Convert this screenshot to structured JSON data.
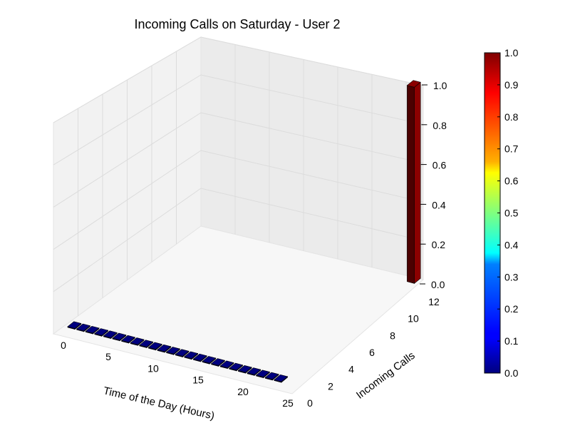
{
  "chart_data": {
    "type": "bar3d",
    "title": "Incoming Calls on Saturday - User 2",
    "xlabel": "Time of the Day (Hours)",
    "ylabel": "Incoming Calls",
    "zlabel": "",
    "xlim": [
      0,
      25
    ],
    "ylim": [
      0,
      12
    ],
    "zlim": [
      0,
      1.0
    ],
    "x_ticks": [
      "0",
      "5",
      "10",
      "15",
      "20",
      "25"
    ],
    "y_ticks": [
      "0",
      "2",
      "4",
      "6",
      "8",
      "10",
      "12"
    ],
    "z_ticks": [
      "0.0",
      "0.2",
      "0.4",
      "0.6",
      "0.8",
      "1.0"
    ],
    "bars": [
      {
        "x": 0,
        "y": 0,
        "z": 0
      },
      {
        "x": 1,
        "y": 0,
        "z": 0
      },
      {
        "x": 2,
        "y": 0,
        "z": 0
      },
      {
        "x": 3,
        "y": 0,
        "z": 0
      },
      {
        "x": 4,
        "y": 0,
        "z": 0
      },
      {
        "x": 5,
        "y": 0,
        "z": 0
      },
      {
        "x": 6,
        "y": 0,
        "z": 0
      },
      {
        "x": 7,
        "y": 0,
        "z": 0
      },
      {
        "x": 8,
        "y": 0,
        "z": 0
      },
      {
        "x": 9,
        "y": 0,
        "z": 0
      },
      {
        "x": 10,
        "y": 0,
        "z": 0
      },
      {
        "x": 11,
        "y": 0,
        "z": 0
      },
      {
        "x": 12,
        "y": 0,
        "z": 0
      },
      {
        "x": 13,
        "y": 0,
        "z": 0
      },
      {
        "x": 14,
        "y": 0,
        "z": 0
      },
      {
        "x": 15,
        "y": 0,
        "z": 0
      },
      {
        "x": 16,
        "y": 0,
        "z": 0
      },
      {
        "x": 17,
        "y": 0,
        "z": 0
      },
      {
        "x": 18,
        "y": 0,
        "z": 0
      },
      {
        "x": 19,
        "y": 0,
        "z": 0
      },
      {
        "x": 20,
        "y": 0,
        "z": 0
      },
      {
        "x": 21,
        "y": 0,
        "z": 0
      },
      {
        "x": 22,
        "y": 0,
        "z": 0
      },
      {
        "x": 23,
        "y": 0,
        "z": 0
      },
      {
        "x": 24,
        "y": 12,
        "z": 1.0
      }
    ],
    "colormap": "jet",
    "colorbar": {
      "range": [
        0,
        1.0
      ],
      "ticks": [
        "0.0",
        "0.1",
        "0.2",
        "0.3",
        "0.4",
        "0.5",
        "0.6",
        "0.7",
        "0.8",
        "0.9",
        "1.0"
      ]
    },
    "grid": true
  }
}
